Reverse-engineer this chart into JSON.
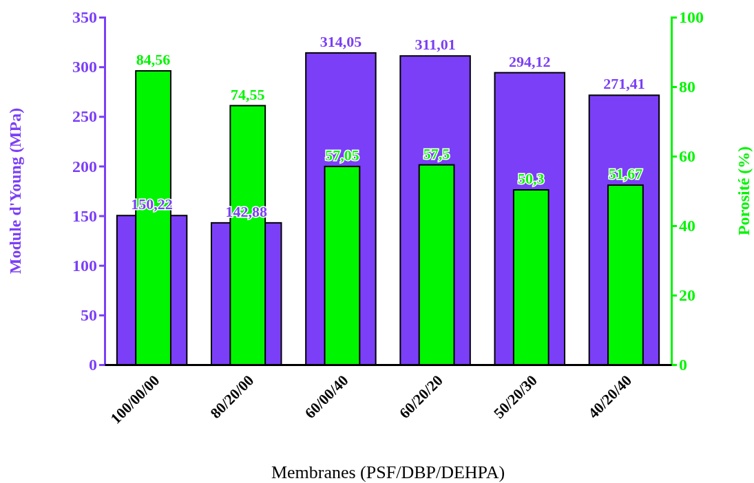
{
  "chart_data": {
    "type": "bar",
    "xlabel": "Membranes (PSF/DBP/DEHPA)",
    "ylabel": "Module d'Young (MPa)",
    "y2label": "Porosité (%)",
    "categories": [
      "100/00/00",
      "80/20/00",
      "60/00/40",
      "60/20/20",
      "50/20/30",
      "40/20/40"
    ],
    "series": [
      {
        "name": null,
        "color": "#7b3ff7",
        "values": [
          150.22,
          142.88,
          314.05,
          311.01,
          294.12,
          271.41
        ],
        "value_labels": [
          "150,22",
          "142,88",
          "314,05",
          "311,01",
          "294,12",
          "271,41"
        ]
      },
      {
        "name": null,
        "color": "#00f500",
        "axis": "y2",
        "values": [
          84.56,
          74.55,
          57.05,
          57.5,
          50.3,
          51.67
        ],
        "value_labels": [
          "84,56",
          "74,55",
          "57,05",
          "57,5",
          "50,3",
          "51,67"
        ]
      }
    ],
    "ylim": [
      0,
      350
    ],
    "yticks": [
      0,
      50,
      100,
      150,
      200,
      250,
      300,
      350
    ],
    "y2lim": [
      0,
      100
    ],
    "y2ticks": [
      0,
      20,
      40,
      60,
      80,
      100
    ],
    "grid": false
  }
}
